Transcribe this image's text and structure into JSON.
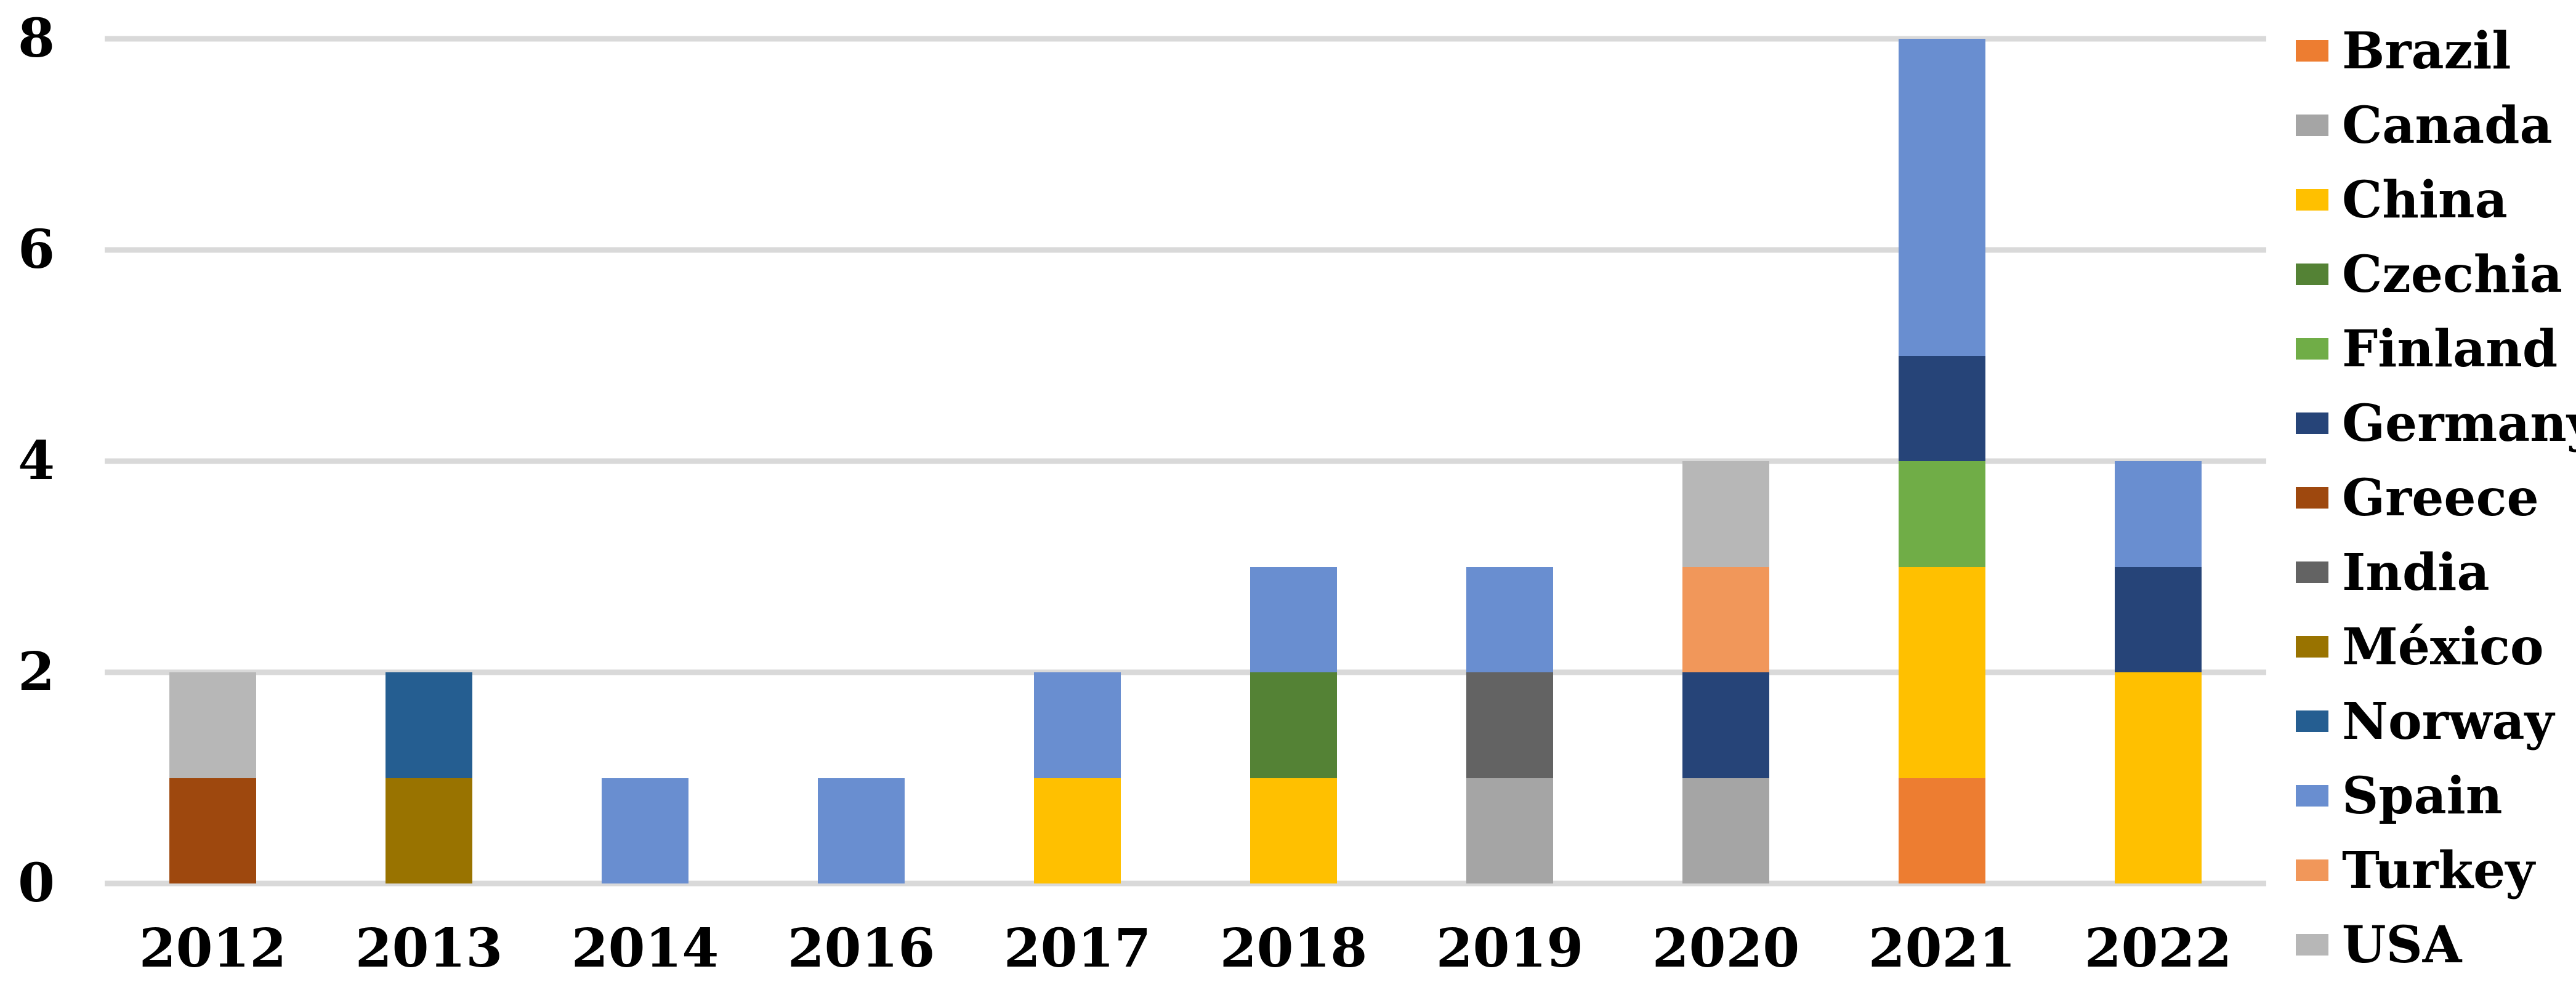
{
  "chart_data": {
    "type": "bar",
    "stacked": true,
    "title": "",
    "categories": [
      "2012",
      "2013",
      "2014",
      "2016",
      "2017",
      "2018",
      "2019",
      "2020",
      "2021",
      "2022"
    ],
    "series": [
      {
        "name": "Brazil",
        "color": "#ED7D31",
        "values": [
          0,
          0,
          0,
          0,
          0,
          0,
          0,
          0,
          1,
          0
        ]
      },
      {
        "name": "Canada",
        "color": "#A5A5A5",
        "values": [
          0,
          0,
          0,
          0,
          0,
          0,
          1,
          1,
          0,
          0
        ]
      },
      {
        "name": "China",
        "color": "#FFC000",
        "values": [
          0,
          0,
          0,
          0,
          1,
          1,
          0,
          0,
          2,
          2
        ]
      },
      {
        "name": "Czechia",
        "color": "#548235",
        "values": [
          0,
          0,
          0,
          0,
          0,
          1,
          0,
          0,
          0,
          0
        ]
      },
      {
        "name": "Finland",
        "color": "#70AD47",
        "values": [
          0,
          0,
          0,
          0,
          0,
          0,
          0,
          0,
          1,
          0
        ]
      },
      {
        "name": "Germany",
        "color": "#264478",
        "values": [
          0,
          0,
          0,
          0,
          0,
          0,
          0,
          1,
          1,
          1
        ]
      },
      {
        "name": "Greece",
        "color": "#9E480E",
        "values": [
          1,
          0,
          0,
          0,
          0,
          0,
          0,
          0,
          0,
          0
        ]
      },
      {
        "name": "India",
        "color": "#636363",
        "values": [
          0,
          0,
          0,
          0,
          0,
          0,
          1,
          0,
          0,
          0
        ]
      },
      {
        "name": "México",
        "color": "#997300",
        "values": [
          0,
          1,
          0,
          0,
          0,
          0,
          0,
          0,
          0,
          0
        ]
      },
      {
        "name": "Norway",
        "color": "#255E91",
        "values": [
          0,
          1,
          0,
          0,
          0,
          0,
          0,
          0,
          0,
          0
        ]
      },
      {
        "name": "Spain",
        "color": "#698ED0",
        "values": [
          0,
          0,
          1,
          1,
          1,
          1,
          1,
          0,
          3,
          1
        ]
      },
      {
        "name": "Turkey",
        "color": "#F1975A",
        "values": [
          0,
          0,
          0,
          0,
          0,
          0,
          0,
          1,
          0,
          0
        ]
      },
      {
        "name": "USA",
        "color": "#B7B7B7",
        "values": [
          1,
          0,
          0,
          0,
          0,
          0,
          0,
          1,
          0,
          0
        ]
      }
    ],
    "xlabel": "",
    "ylabel": "",
    "ylim": [
      0,
      8
    ],
    "yticks": [
      0,
      2,
      4,
      6,
      8
    ],
    "ytick_labels": [
      "0",
      "2",
      "4",
      "6",
      "8"
    ],
    "grid": true,
    "gridline_color": "#D9D9D9",
    "legend_position": "right"
  }
}
